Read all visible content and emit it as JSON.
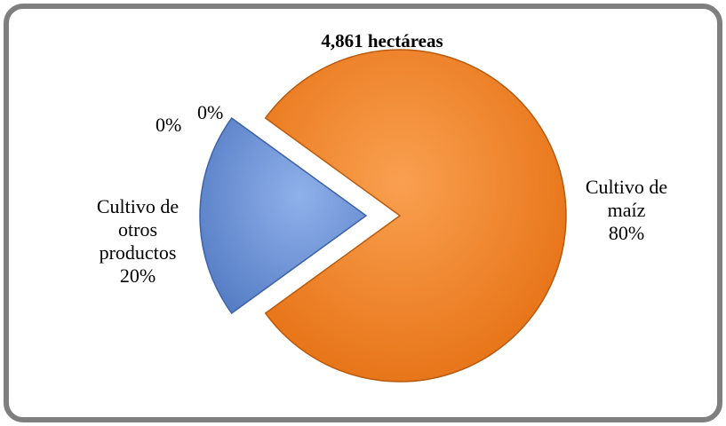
{
  "chart_data": {
    "type": "pie",
    "title": "4,861 hectáreas",
    "categories": [
      "Cultivo de maíz",
      "Cultivo de otros productos",
      null,
      null
    ],
    "values": [
      80,
      20,
      0,
      0
    ],
    "value_labels": [
      "80%",
      "20%",
      "0%",
      "0%"
    ],
    "colors": [
      "#ef7b1c",
      "#6a90d4",
      "#9bbb59",
      "#8064a2"
    ]
  }
}
